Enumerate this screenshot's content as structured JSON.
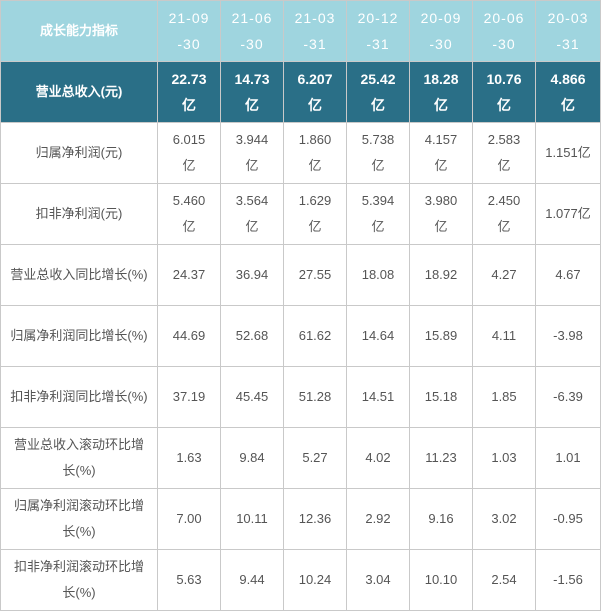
{
  "table": {
    "corner_label": "成长能力指标",
    "periods": [
      "21-09-30",
      "21-06-30",
      "21-03-31",
      "20-12-31",
      "20-09-30",
      "20-06-30",
      "20-03-31"
    ],
    "rows": [
      {
        "label": "营业总收入(元)",
        "values": [
          "22.73亿",
          "14.73亿",
          "6.207亿",
          "25.42亿",
          "18.28亿",
          "10.76亿",
          "4.866亿"
        ]
      },
      {
        "label": "归属净利润(元)",
        "values": [
          "6.015亿",
          "3.944亿",
          "1.860亿",
          "5.738亿",
          "4.157亿",
          "2.583亿",
          "1.151亿"
        ]
      },
      {
        "label": "扣非净利润(元)",
        "values": [
          "5.460亿",
          "3.564亿",
          "1.629亿",
          "5.394亿",
          "3.980亿",
          "2.450亿",
          "1.077亿"
        ]
      },
      {
        "label": "营业总收入同比增长(%)",
        "values": [
          "24.37",
          "36.94",
          "27.55",
          "18.08",
          "18.92",
          "4.27",
          "4.67"
        ]
      },
      {
        "label": "归属净利润同比增长(%)",
        "values": [
          "44.69",
          "52.68",
          "61.62",
          "14.64",
          "15.89",
          "4.11",
          "-3.98"
        ]
      },
      {
        "label": "扣非净利润同比增长(%)",
        "values": [
          "37.19",
          "45.45",
          "51.28",
          "14.51",
          "15.18",
          "1.85",
          "-6.39"
        ]
      },
      {
        "label": "营业总收入滚动环比增长(%)",
        "values": [
          "1.63",
          "9.84",
          "5.27",
          "4.02",
          "11.23",
          "1.03",
          "1.01"
        ]
      },
      {
        "label": "归属净利润滚动环比增长(%)",
        "values": [
          "7.00",
          "10.11",
          "12.36",
          "2.92",
          "9.16",
          "3.02",
          "-0.95"
        ]
      },
      {
        "label": "扣非净利润滚动环比增长(%)",
        "values": [
          "5.63",
          "9.44",
          "10.24",
          "3.04",
          "10.10",
          "2.54",
          "-1.56"
        ]
      }
    ]
  }
}
